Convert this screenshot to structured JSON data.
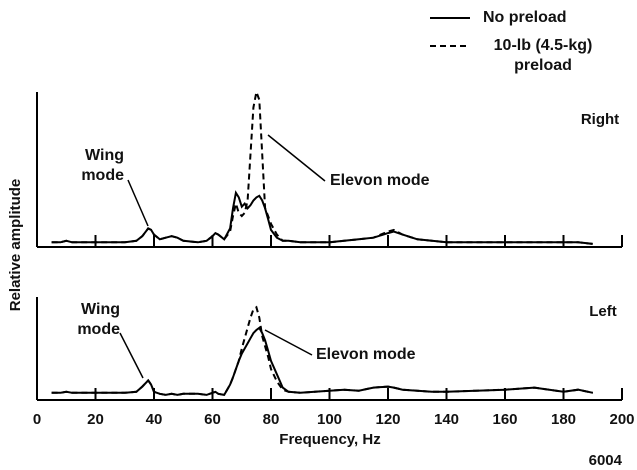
{
  "chart_data": {
    "type": "line",
    "xlabel": "Frequency, Hz",
    "ylabel": "Relative amplitude",
    "figure_id": "6004",
    "xlim": [
      0,
      200
    ],
    "xticks": [
      0,
      20,
      40,
      60,
      80,
      100,
      120,
      140,
      160,
      180,
      200
    ],
    "series": [
      {
        "name": "No preload",
        "color": "#000000",
        "dash": "solid"
      },
      {
        "name": "10-lb (4.5-kg) preload",
        "color": "#000000",
        "dash": "dashed"
      }
    ],
    "x": [
      5,
      8,
      10,
      12,
      15,
      20,
      25,
      30,
      34,
      36,
      38,
      39,
      40,
      42,
      44,
      46,
      48,
      50,
      55,
      58,
      60,
      61,
      62,
      64,
      66,
      67,
      68,
      69,
      70,
      71,
      72,
      73,
      74,
      75,
      76,
      77,
      78,
      79,
      80,
      82,
      84,
      86,
      90,
      95,
      100,
      105,
      110,
      115,
      120,
      122,
      125,
      130,
      135,
      140,
      150,
      160,
      170,
      180,
      185,
      190
    ],
    "panels": [
      {
        "label": "Right",
        "ylim": [
          0,
          100
        ],
        "annotations": [
          "Wing mode",
          "Elevon mode"
        ],
        "values": [
          [
            3,
            3,
            4,
            3,
            3,
            3,
            3,
            3,
            4,
            7,
            12,
            11,
            8,
            5,
            6,
            7,
            6,
            4,
            3,
            4,
            7,
            9,
            8,
            5,
            12,
            25,
            35,
            32,
            26,
            28,
            25,
            27,
            30,
            32,
            33,
            30,
            25,
            18,
            11,
            6,
            4,
            4,
            3,
            3,
            3,
            4,
            5,
            6,
            9,
            10,
            8,
            5,
            4,
            3,
            3,
            3,
            3,
            3,
            3,
            2
          ],
          [
            3,
            3,
            4,
            3,
            3,
            3,
            3,
            3,
            4,
            7,
            12,
            11,
            8,
            5,
            6,
            7,
            6,
            4,
            3,
            4,
            7,
            9,
            8,
            5,
            10,
            20,
            28,
            22,
            20,
            22,
            30,
            60,
            90,
            100,
            95,
            60,
            25,
            20,
            15,
            8,
            4,
            4,
            3,
            3,
            3,
            4,
            5,
            6,
            10,
            11,
            8,
            5,
            4,
            3,
            3,
            3,
            3,
            3,
            3,
            2
          ]
        ]
      },
      {
        "label": "Left",
        "ylim": [
          0,
          100
        ],
        "annotations": [
          "Wing mode",
          "Elevon mode"
        ],
        "values": [
          [
            7,
            7,
            8,
            7,
            7,
            7,
            7,
            7,
            8,
            13,
            19,
            15,
            8,
            6,
            5,
            6,
            5,
            6,
            6,
            5,
            7,
            8,
            6,
            5,
            15,
            22,
            30,
            38,
            45,
            50,
            55,
            60,
            65,
            68,
            70,
            65,
            58,
            48,
            38,
            25,
            12,
            8,
            7,
            8,
            9,
            10,
            9,
            12,
            13,
            12,
            10,
            9,
            8,
            8,
            9,
            10,
            12,
            8,
            10,
            7
          ],
          [
            7,
            7,
            8,
            7,
            7,
            7,
            7,
            7,
            8,
            13,
            19,
            15,
            8,
            6,
            5,
            6,
            5,
            6,
            6,
            5,
            7,
            8,
            6,
            5,
            15,
            22,
            30,
            38,
            50,
            60,
            70,
            80,
            88,
            90,
            80,
            62,
            52,
            42,
            30,
            18,
            10,
            8,
            7,
            8,
            9,
            10,
            9,
            12,
            13,
            12,
            10,
            9,
            8,
            8,
            9,
            10,
            12,
            8,
            10,
            7
          ]
        ]
      }
    ]
  }
}
